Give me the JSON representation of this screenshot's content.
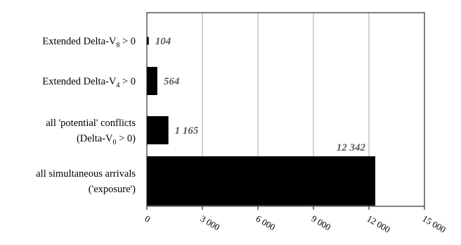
{
  "chart_data": {
    "type": "bar",
    "orientation": "horizontal",
    "categories": [
      {
        "id": "ext-v8",
        "lines": [
          {
            "before": "Extended Delta-V",
            "sub": "8",
            "after": " > 0"
          }
        ]
      },
      {
        "id": "ext-v4",
        "lines": [
          {
            "before": "Extended Delta-V",
            "sub": "4",
            "after": " > 0"
          }
        ]
      },
      {
        "id": "potential",
        "lines": [
          {
            "before": "all 'potential' conflicts",
            "sub": "",
            "after": ""
          },
          {
            "before": "(Delta-V",
            "sub": "0",
            "after": " > 0)"
          }
        ]
      },
      {
        "id": "exposure",
        "lines": [
          {
            "before": "all simultaneous arrivals",
            "sub": "",
            "after": ""
          },
          {
            "before": "('exposure')",
            "sub": "",
            "after": ""
          }
        ]
      }
    ],
    "values": [
      104,
      564,
      1165,
      12342
    ],
    "value_labels": [
      "104",
      "564",
      "1 165",
      "12 342"
    ],
    "xlim": [
      0,
      15000
    ],
    "x_ticks": [
      0,
      3000,
      6000,
      9000,
      12000,
      15000
    ],
    "x_tick_labels": [
      "0",
      "3 000",
      "6 000",
      "9 000",
      "12 000",
      "15 000"
    ],
    "grid": "vertical",
    "bar_color": "#000000",
    "label_color": "#595959",
    "gridline_color": "#a6a6a6",
    "frame_color": "#000000",
    "title": "",
    "xlabel": "",
    "ylabel": ""
  }
}
